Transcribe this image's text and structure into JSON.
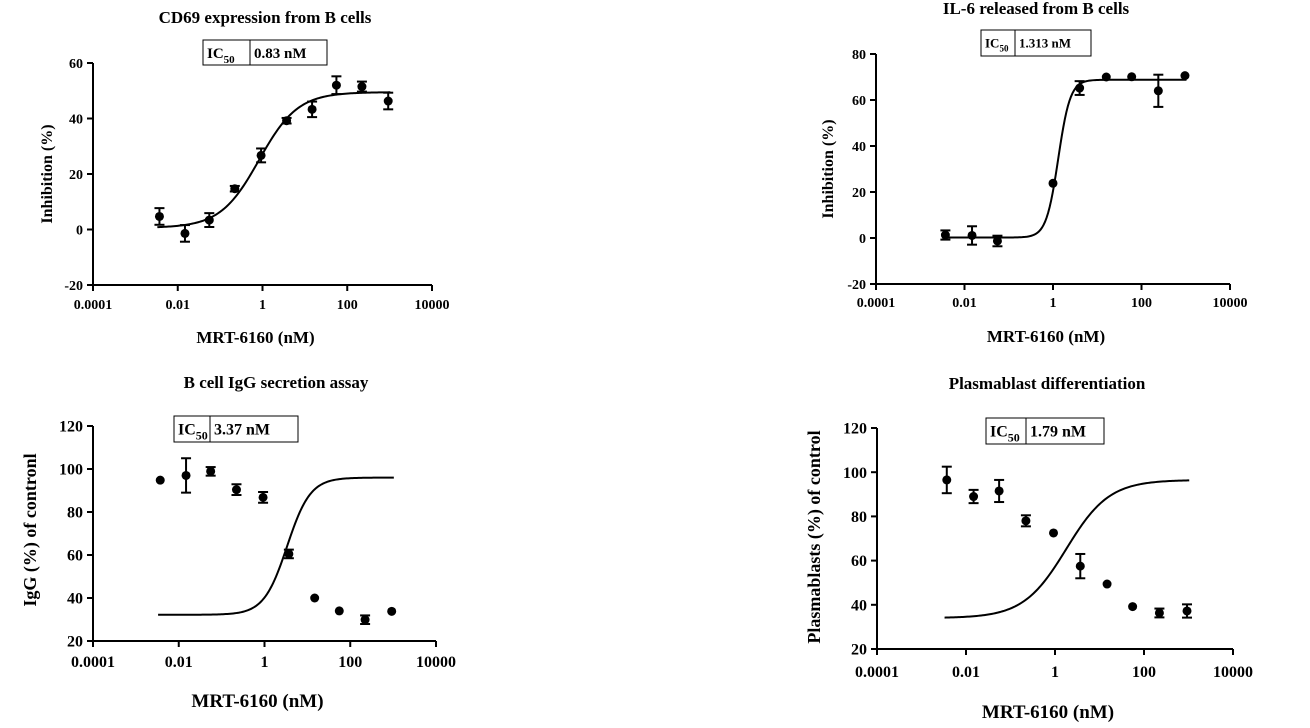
{
  "chart_data": [
    {
      "type": "scatter",
      "title": "CD69 expression from B cells",
      "xlabel": "MRT-6160 (nM)",
      "ylabel": "Inhibition (%)",
      "x_scale": "log",
      "xlim": [
        0.0001,
        10000
      ],
      "ylim": [
        -20,
        60
      ],
      "x_ticks": [
        "0.0001",
        "0.01",
        "1",
        "100",
        "10000"
      ],
      "y_ticks": [
        "-20",
        "0",
        "20",
        "40",
        "60"
      ],
      "ic50_label": "IC",
      "ic50_sub": "50",
      "ic50_value": "0.83 nM",
      "grid": false,
      "points": [
        {
          "x": 0.0037,
          "y": 4.7,
          "err": 3.0
        },
        {
          "x": 0.0148,
          "y": -1.4,
          "err": 3.0
        },
        {
          "x": 0.0555,
          "y": 3.4,
          "err": 2.5
        },
        {
          "x": 0.222,
          "y": 14.7,
          "err": 1.0
        },
        {
          "x": 0.926,
          "y": 26.7,
          "err": 2.5
        },
        {
          "x": 3.7,
          "y": 39.2,
          "err": 1.0
        },
        {
          "x": 14.8,
          "y": 43.3,
          "err": 2.8
        },
        {
          "x": 55.5,
          "y": 52.0,
          "err": 3.2
        },
        {
          "x": 222,
          "y": 51.5,
          "err": 1.8
        },
        {
          "x": 926,
          "y": 46.3,
          "err": 3.0
        }
      ],
      "curve": {
        "bottom": 0.6,
        "top": 49.5,
        "ic50": 0.83,
        "hill": 0.95
      }
    },
    {
      "type": "scatter",
      "title": "IL-6 released from B cells",
      "xlabel": "MRT-6160 (nM)",
      "ylabel": "Inhibition (%)",
      "x_scale": "log",
      "xlim": [
        0.0001,
        10000
      ],
      "ylim": [
        -20,
        80
      ],
      "x_ticks": [
        "0.0001",
        "0.01",
        "1",
        "100",
        "10000"
      ],
      "y_ticks": [
        "-20",
        "0",
        "20",
        "40",
        "60",
        "80"
      ],
      "ic50_label": "IC",
      "ic50_sub": "50",
      "ic50_value": "1.313 nM",
      "grid": false,
      "points": [
        {
          "x": 0.0037,
          "y": 1.3,
          "err": 2.0
        },
        {
          "x": 0.0148,
          "y": 1.1,
          "err": 4.0
        },
        {
          "x": 0.0555,
          "y": -1.3,
          "err": 2.3
        },
        {
          "x": 1.0,
          "y": 23.8,
          "err": 0
        },
        {
          "x": 4.0,
          "y": 65.2,
          "err": 3.0
        },
        {
          "x": 16.0,
          "y": 70.0,
          "err": 0
        },
        {
          "x": 60.0,
          "y": 70.1,
          "err": 0
        },
        {
          "x": 240,
          "y": 64.0,
          "err": 7.0
        },
        {
          "x": 960,
          "y": 70.6,
          "err": 0
        }
      ],
      "curve": {
        "bottom": 0.2,
        "top": 68.8,
        "ic50": 1.313,
        "hill": 3.2
      }
    },
    {
      "type": "scatter",
      "title": "B cell IgG secretion assay",
      "xlabel": "MRT-6160 (nM)",
      "ylabel": "IgG (%) of contronl",
      "x_scale": "log",
      "xlim": [
        0.0001,
        10000
      ],
      "ylim": [
        20,
        120
      ],
      "x_ticks": [
        "0.0001",
        "0.01",
        "1",
        "100",
        "10000"
      ],
      "y_ticks": [
        "20",
        "40",
        "60",
        "80",
        "100",
        "120"
      ],
      "ic50_label": "IC",
      "ic50_sub": "50",
      "ic50_value": "3.37 nM",
      "grid": false,
      "points": [
        {
          "x": 0.0037,
          "y": 94.8,
          "err": 0
        },
        {
          "x": 0.0148,
          "y": 97.0,
          "err": 8.0
        },
        {
          "x": 0.0555,
          "y": 98.9,
          "err": 2.0
        },
        {
          "x": 0.222,
          "y": 90.4,
          "err": 2.5
        },
        {
          "x": 0.926,
          "y": 86.8,
          "err": 2.5
        },
        {
          "x": 3.7,
          "y": 60.5,
          "err": 2.0
        },
        {
          "x": 14.8,
          "y": 40.0,
          "err": 0
        },
        {
          "x": 55.5,
          "y": 34.0,
          "err": 0
        },
        {
          "x": 222,
          "y": 29.9,
          "err": 2.0
        },
        {
          "x": 926,
          "y": 33.8,
          "err": 0
        }
      ],
      "curve": {
        "bottom": 32.2,
        "top": 96.0,
        "ic50": 3.37,
        "hill": 1.6
      }
    },
    {
      "type": "scatter",
      "title": "Plasmablast differentiation",
      "xlabel": "MRT-6160 (nM)",
      "ylabel": "Plasmablasts (%) of control",
      "x_scale": "log",
      "xlim": [
        0.0001,
        10000
      ],
      "ylim": [
        20,
        120
      ],
      "x_ticks": [
        "0.0001",
        "0.01",
        "1",
        "100",
        "10000"
      ],
      "y_ticks": [
        "20",
        "40",
        "60",
        "80",
        "100",
        "120"
      ],
      "ic50_label": "IC",
      "ic50_sub": "50",
      "ic50_value": "1.79 nM",
      "grid": false,
      "points": [
        {
          "x": 0.0037,
          "y": 96.5,
          "err": 6.0
        },
        {
          "x": 0.0148,
          "y": 89.0,
          "err": 3.0
        },
        {
          "x": 0.0555,
          "y": 91.5,
          "err": 5.0
        },
        {
          "x": 0.222,
          "y": 78.0,
          "err": 2.5
        },
        {
          "x": 0.926,
          "y": 72.5,
          "err": 0
        },
        {
          "x": 3.7,
          "y": 57.5,
          "err": 5.5
        },
        {
          "x": 14.8,
          "y": 49.4,
          "err": 0
        },
        {
          "x": 55.5,
          "y": 39.2,
          "err": 0
        },
        {
          "x": 222,
          "y": 36.3,
          "err": 2.0
        },
        {
          "x": 926,
          "y": 37.2,
          "err": 3.0
        }
      ],
      "curve": {
        "bottom": 34.0,
        "top": 96.5,
        "ic50": 1.79,
        "hill": 0.9
      }
    }
  ]
}
